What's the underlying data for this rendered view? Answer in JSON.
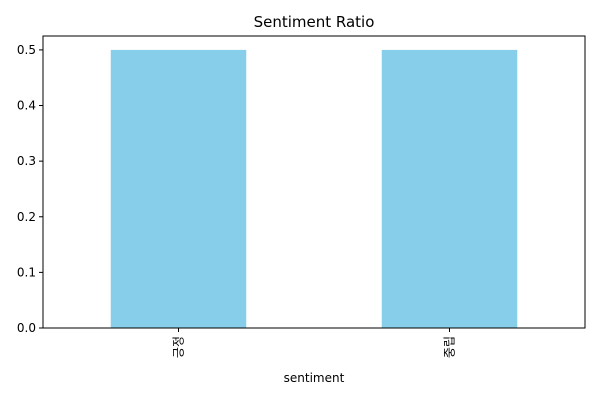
{
  "chart_data": {
    "type": "bar",
    "title": "Sentiment Ratio",
    "xlabel": "sentiment",
    "ylabel": "",
    "categories": [
      "긍정",
      "중립"
    ],
    "values": [
      0.5,
      0.5
    ],
    "ylim": [
      0,
      0.525
    ],
    "yticks": [
      "0.0",
      "0.1",
      "0.2",
      "0.3",
      "0.4",
      "0.5"
    ],
    "bar_color": "#87ceeb",
    "grid": false,
    "legend": "none"
  }
}
